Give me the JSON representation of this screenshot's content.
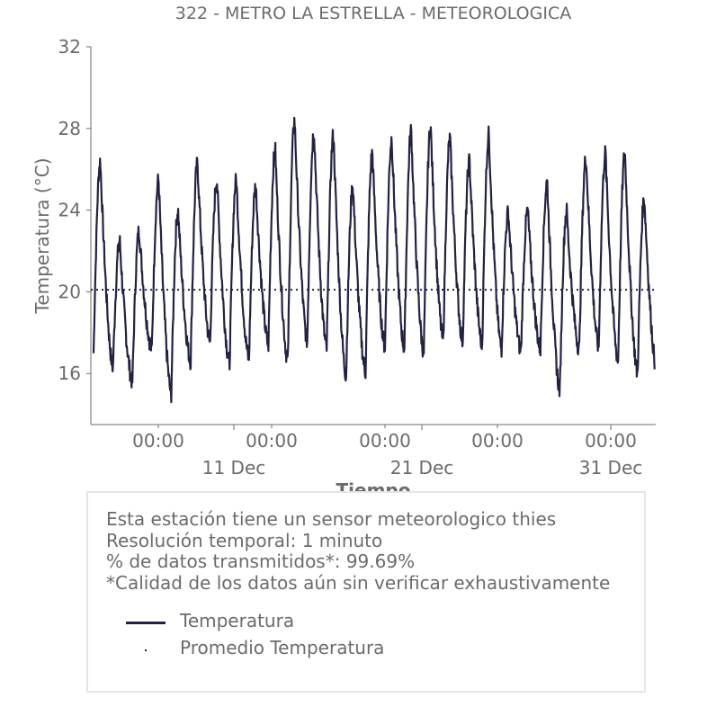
{
  "chart_data": {
    "type": "line",
    "title": "322 - METRO LA ESTRELLA - METEOROLOGICA",
    "xlabel": "Tiempo",
    "ylabel": "Temperatura (°C)",
    "ylim": [
      13.5,
      32
    ],
    "yticks": [
      16,
      20,
      24,
      28,
      32
    ],
    "xlim": [
      0,
      30
    ],
    "x_tick_labels_top": [
      "00:00",
      "00:00",
      "00:00",
      "00:00",
      "00:00"
    ],
    "x_tick_labels_bottom": [
      "11 Dec",
      "21 Dec",
      "31 Dec"
    ],
    "grid": false,
    "series": [
      {
        "name": "Temperatura",
        "color": "#222244",
        "style": "solid",
        "daily_max": [
          26.4,
          22.5,
          23.0,
          25.5,
          24.0,
          26.3,
          25.5,
          25.5,
          25.2,
          27.0,
          28.4,
          27.9,
          27.7,
          25.2,
          26.8,
          27.5,
          27.9,
          28.1,
          27.5,
          26.4,
          27.7,
          23.9,
          24.0,
          25.4,
          24.0,
          26.6,
          26.8,
          26.8,
          24.6
        ],
        "daily_min": [
          17.0,
          16.3,
          15.6,
          17.2,
          15.0,
          16.6,
          17.5,
          16.5,
          16.7,
          17.4,
          16.6,
          17.6,
          17.2,
          15.9,
          16.1,
          17.3,
          17.2,
          17.0,
          17.6,
          17.6,
          17.4,
          17.2,
          17.1,
          17.2,
          15.2,
          17.2,
          17.3,
          16.6,
          16.0
        ]
      },
      {
        "name": "Promedio Temperatura",
        "color": "#222244",
        "style": "dotted",
        "value": 20.1
      }
    ]
  },
  "info": {
    "line1": "Esta estación tiene un sensor meteorologico thies",
    "line2": "Resolución temporal: 1 minuto",
    "line3": "% de datos transmitidos*: 99.69%",
    "line4": "*Calidad de los datos aún sin verificar exhaustivamente"
  },
  "legend": {
    "temperatura": "Temperatura",
    "promedio": "Promedio Temperatura"
  }
}
